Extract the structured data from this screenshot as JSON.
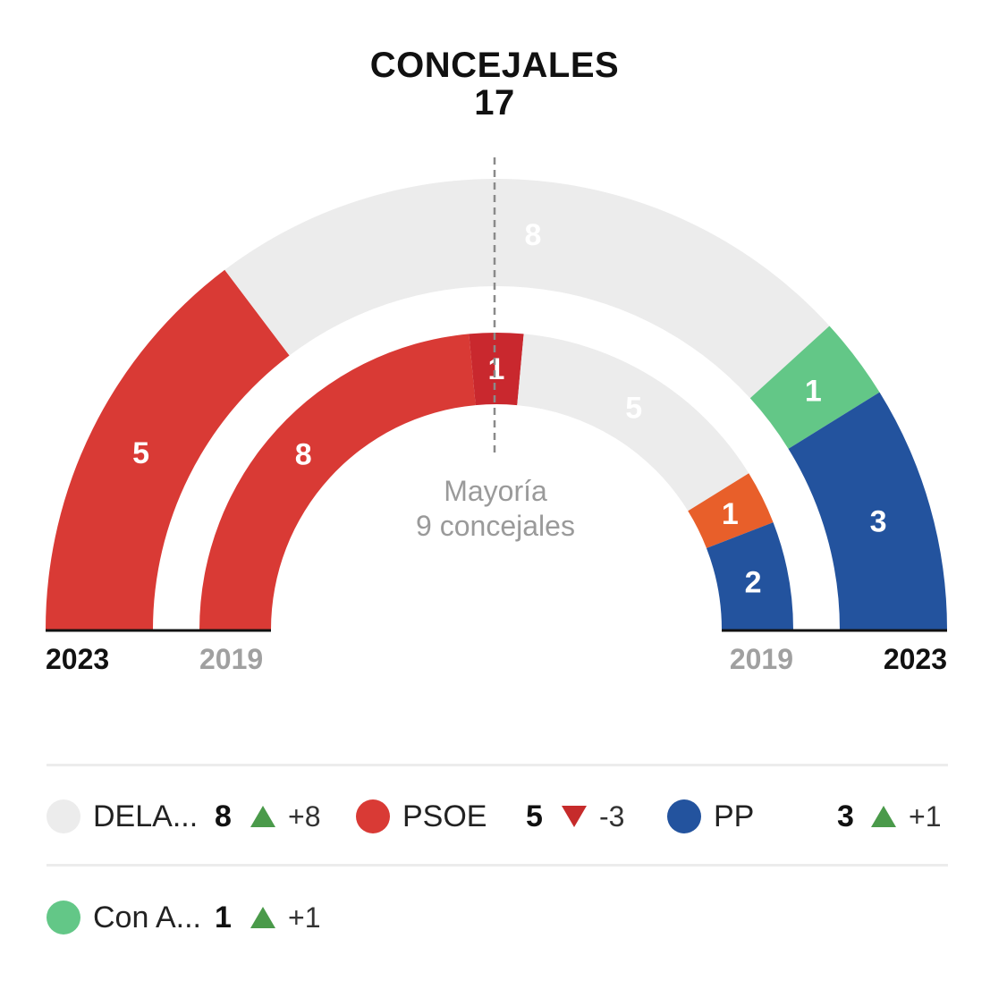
{
  "title": "CONCEJALES",
  "total_seats": "17",
  "majority": {
    "line1": "Mayoría",
    "line2": "9 concejales"
  },
  "year_labels": {
    "outer": "2023",
    "inner": "2019"
  },
  "colors": {
    "DELA": "#ececec",
    "PSOE": "#d93a35",
    "PP": "#23539e",
    "ConA": "#63c787",
    "psoe_2019_extra": "#c9282e",
    "other_2019": "#e85f2a",
    "up": "#4a9a4a",
    "down": "#c62b2b"
  },
  "chart_data": [
    {
      "type": "parliament",
      "year": "2023",
      "total": 17,
      "majority": 9,
      "series": [
        {
          "party": "PSOE",
          "seats": 5,
          "color": "#d93a35"
        },
        {
          "party": "DELA...",
          "seats": 8,
          "color": "#ececec"
        },
        {
          "party": "Con A...",
          "seats": 1,
          "color": "#63c787"
        },
        {
          "party": "PP",
          "seats": 3,
          "color": "#23539e"
        }
      ]
    },
    {
      "type": "parliament",
      "year": "2019",
      "total": 17,
      "majority": 9,
      "series": [
        {
          "seats": 8,
          "color": "#d93a35"
        },
        {
          "seats": 1,
          "color": "#c9282e"
        },
        {
          "seats": 5,
          "color": "#ececec"
        },
        {
          "seats": 1,
          "color": "#e85f2a"
        },
        {
          "party": "PP",
          "seats": 2,
          "color": "#23539e"
        }
      ]
    }
  ],
  "legend": [
    {
      "name": "DELA...",
      "seats": "8",
      "direction": "up",
      "change": "+8",
      "color": "#ececec"
    },
    {
      "name": "PSOE",
      "seats": "5",
      "direction": "down",
      "change": "-3",
      "color": "#d93a35"
    },
    {
      "name": "PP",
      "seats": "3",
      "direction": "up",
      "change": "+1",
      "color": "#23539e"
    },
    {
      "name": "Con A...",
      "seats": "1",
      "direction": "up",
      "change": "+1",
      "color": "#63c787"
    }
  ]
}
